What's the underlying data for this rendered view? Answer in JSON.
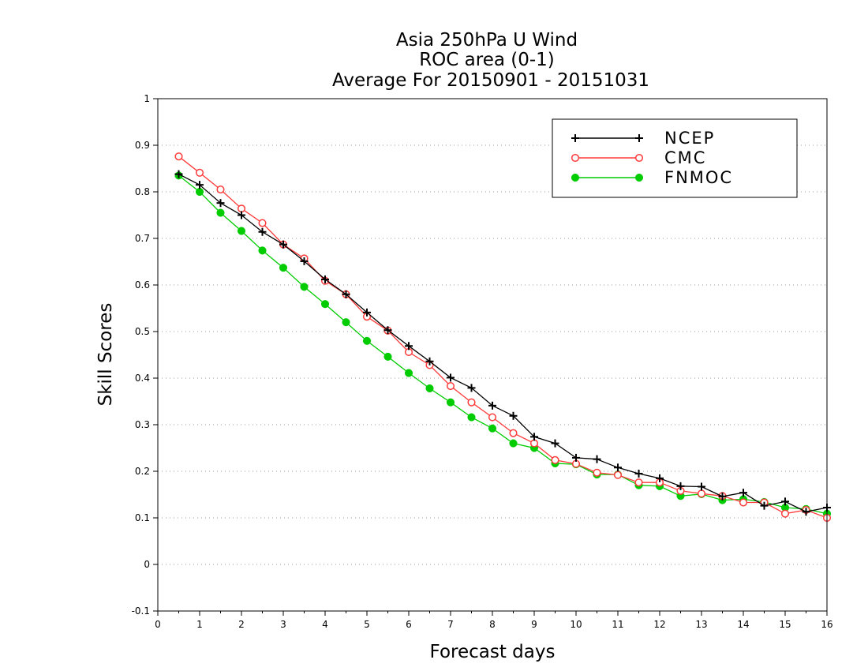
{
  "chart_data": {
    "type": "line",
    "title_lines": [
      "Asia 250hPa U Wind",
      "ROC area (0-1)",
      "Average For 20150901 - 20151031"
    ],
    "xlabel": "Forecast days",
    "ylabel": "Skill Scores",
    "xlim": [
      0,
      16
    ],
    "ylim": [
      -0.1,
      1
    ],
    "xticks": [
      "0",
      "1",
      "2",
      "3",
      "4",
      "5",
      "6",
      "7",
      "8",
      "9",
      "10",
      "11",
      "12",
      "13",
      "14",
      "15",
      "16"
    ],
    "yticks": [
      "-0.1",
      "0",
      "0.1",
      "0.2",
      "0.3",
      "0.4",
      "0.5",
      "0.6",
      "0.7",
      "0.8",
      "0.9",
      "1"
    ],
    "grid": "horizontal dotted",
    "legend_position": "top-right",
    "x": [
      0.5,
      1,
      1.5,
      2,
      2.5,
      3,
      3.5,
      4,
      4.5,
      5,
      5.5,
      6,
      6.5,
      7,
      7.5,
      8,
      8.5,
      9,
      9.5,
      10,
      10.5,
      11,
      11.5,
      12,
      12.5,
      13,
      13.5,
      14,
      14.5,
      15,
      15.5,
      16
    ],
    "series": [
      {
        "name": "NCEP",
        "color": "#000000",
        "marker": "plus",
        "values": [
          0.838,
          0.815,
          0.776,
          0.75,
          0.714,
          0.687,
          0.651,
          0.612,
          0.58,
          0.541,
          0.503,
          0.469,
          0.436,
          0.401,
          0.379,
          0.341,
          0.319,
          0.274,
          0.26,
          0.229,
          0.226,
          0.208,
          0.195,
          0.185,
          0.168,
          0.167,
          0.146,
          0.154,
          0.126,
          0.135,
          0.113,
          0.122
        ]
      },
      {
        "name": "CMC",
        "color": "#ff3b3b",
        "marker": "open-circle",
        "values": [
          0.876,
          0.841,
          0.805,
          0.764,
          0.733,
          0.687,
          0.657,
          0.609,
          0.58,
          0.532,
          0.502,
          0.456,
          0.428,
          0.383,
          0.348,
          0.316,
          0.282,
          0.26,
          0.224,
          0.216,
          0.197,
          0.192,
          0.176,
          0.176,
          0.158,
          0.152,
          0.147,
          0.133,
          0.133,
          0.109,
          0.117,
          0.1
        ]
      },
      {
        "name": "FNMOC",
        "color": "#00cc00",
        "marker": "filled-circle",
        "values": [
          0.835,
          0.8,
          0.755,
          0.716,
          0.674,
          0.637,
          0.596,
          0.559,
          0.52,
          0.48,
          0.446,
          0.411,
          0.378,
          0.348,
          0.316,
          0.292,
          0.26,
          0.25,
          0.217,
          0.215,
          0.193,
          0.193,
          0.17,
          0.168,
          0.147,
          0.151,
          0.138,
          0.14,
          0.134,
          0.122,
          0.119,
          0.109
        ]
      }
    ]
  }
}
